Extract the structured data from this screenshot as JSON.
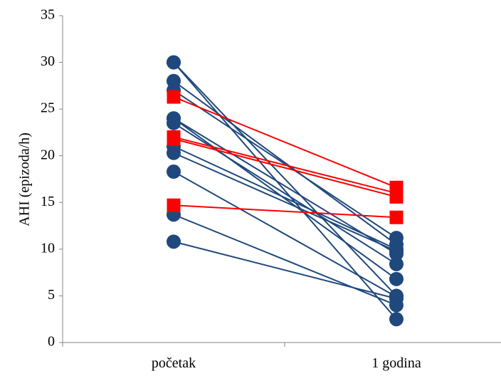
{
  "chart_data": {
    "type": "line",
    "title": "",
    "xlabel": "",
    "ylabel": "AHI (epizoda/h)",
    "categories": [
      "početak",
      "1 godina"
    ],
    "ylim": [
      0,
      35
    ],
    "yticks": [
      0,
      5,
      10,
      15,
      20,
      25,
      30,
      35
    ],
    "grid": false,
    "legend": "none",
    "groups": [
      {
        "marker": "circle",
        "color": "#1F497D",
        "pairs": [
          [
            30.0,
            5.0
          ],
          [
            30.0,
            2.5
          ],
          [
            28.0,
            10.5
          ],
          [
            27.0,
            11.2
          ],
          [
            24.0,
            9.5
          ],
          [
            24.0,
            6.8
          ],
          [
            23.5,
            8.4
          ],
          [
            21.0,
            10.0
          ],
          [
            20.3,
            9.8
          ],
          [
            18.3,
            4.9
          ],
          [
            13.7,
            4.0
          ],
          [
            10.8,
            4.7
          ]
        ]
      },
      {
        "marker": "square",
        "color": "#FF0000",
        "pairs": [
          [
            26.3,
            16.6
          ],
          [
            22.0,
            16.0
          ],
          [
            21.8,
            15.6
          ],
          [
            14.7,
            13.4
          ]
        ]
      }
    ]
  }
}
